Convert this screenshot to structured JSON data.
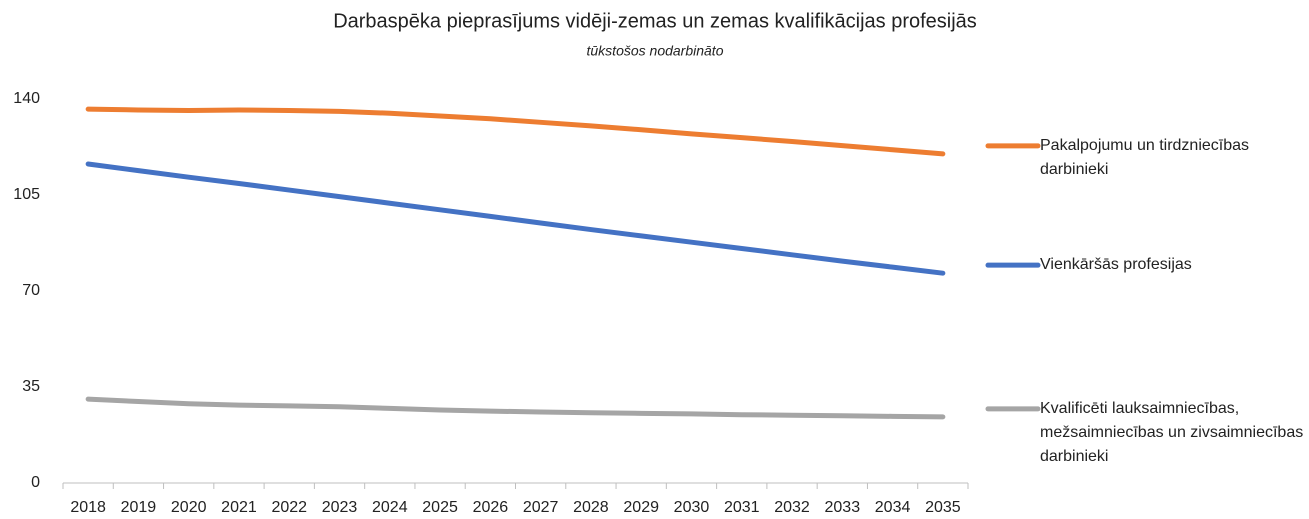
{
  "chart_data": {
    "type": "line",
    "title": "Darbaspēka pieprasījums vidēji-zemas un zemas kvalifikācijas profesijās",
    "subtitle": "tūkstošos nodarbināto",
    "categories": [
      "2018",
      "2019",
      "2020",
      "2021",
      "2022",
      "2023",
      "2024",
      "2025",
      "2026",
      "2027",
      "2028",
      "2029",
      "2030",
      "2031",
      "2032",
      "2033",
      "2034",
      "2035"
    ],
    "series": [
      {
        "name": "Pakalpojumu un tirdzniecības darbinieki",
        "color": "#ed7d31",
        "values": [
          136.3,
          136.0,
          135.8,
          136.0,
          135.8,
          135.5,
          134.8,
          133.8,
          132.8,
          131.5,
          130.2,
          128.8,
          127.3,
          125.9,
          124.5,
          123.0,
          121.5,
          120.0
        ]
      },
      {
        "name": "Vienkāršās profesijas",
        "color": "#4472c4",
        "values": [
          116.3,
          113.9,
          111.5,
          109.2,
          106.8,
          104.4,
          102.0,
          99.6,
          97.2,
          94.8,
          92.4,
          90.1,
          87.8,
          85.5,
          83.2,
          80.9,
          78.7,
          76.5
        ]
      },
      {
        "name": "Kvalificēti lauksaimniecības, mežsaimniecības un zivsaimniecības darbinieki",
        "color": "#a5a5a5",
        "values": [
          30.6,
          29.7,
          28.9,
          28.4,
          28.1,
          27.8,
          27.2,
          26.6,
          26.2,
          25.9,
          25.6,
          25.4,
          25.2,
          24.9,
          24.7,
          24.5,
          24.3,
          24.1
        ]
      }
    ],
    "ylim": [
      0,
      140
    ],
    "yticks": [
      0,
      35,
      70,
      105,
      140
    ],
    "grid": false,
    "legend": "right"
  }
}
